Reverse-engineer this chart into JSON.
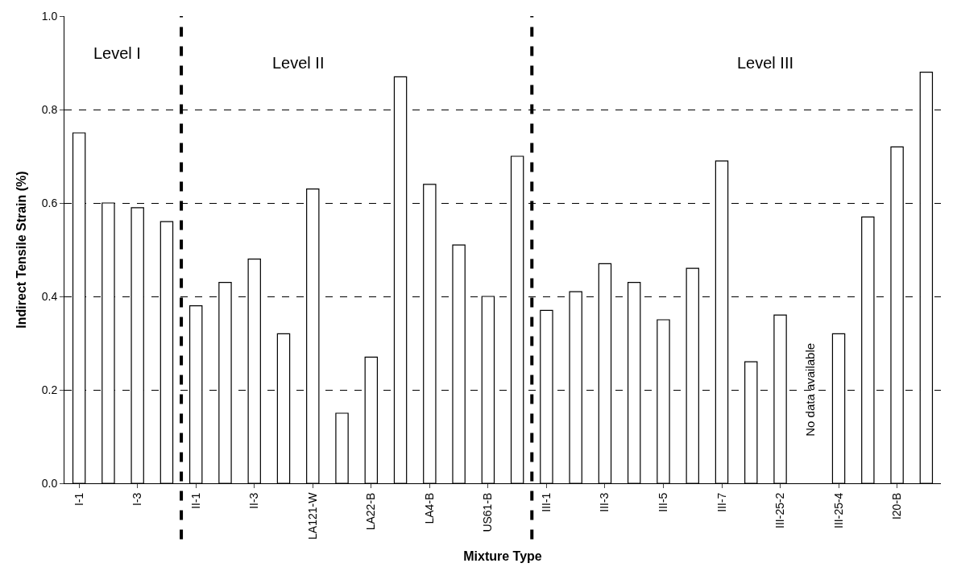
{
  "chart_data": {
    "type": "bar",
    "xlabel": "Mixture Type",
    "ylabel": "Indirect Tensile Strain (%)",
    "categories": [
      "I-1",
      null,
      "I-3",
      null,
      "II-1",
      null,
      "II-3",
      null,
      "LA121-W",
      null,
      "LA22-B",
      null,
      "LA4-B",
      null,
      "US61-B",
      null,
      "III-1",
      null,
      "III-3",
      null,
      "III-5",
      null,
      "III-7",
      null,
      "III-25-2",
      null,
      "III-25-4",
      null,
      "I20-B",
      null
    ],
    "values": [
      0.75,
      0.6,
      0.59,
      0.56,
      0.38,
      0.43,
      0.48,
      0.32,
      0.63,
      0.15,
      0.27,
      0.87,
      0.64,
      0.51,
      0.4,
      0.7,
      0.37,
      0.41,
      0.47,
      0.43,
      0.35,
      0.46,
      0.69,
      0.26,
      0.36,
      null,
      0.32,
      0.57,
      0.72,
      0.88
    ],
    "color": "#ffffff",
    "ylim": [
      0,
      1.0
    ],
    "yticks": [
      {
        "value": 0,
        "label": "0.0"
      },
      {
        "value": 0.2,
        "label": "0.2"
      },
      {
        "value": 0.4,
        "label": "0.4"
      },
      {
        "value": 0.6,
        "label": "0.6"
      },
      {
        "value": 0.8,
        "label": "0.8"
      },
      {
        "value": 1.0,
        "label": "1.0"
      }
    ],
    "grid": "y",
    "annotations": [
      "Level I",
      "Level II",
      "Level III",
      "No data available"
    ]
  }
}
